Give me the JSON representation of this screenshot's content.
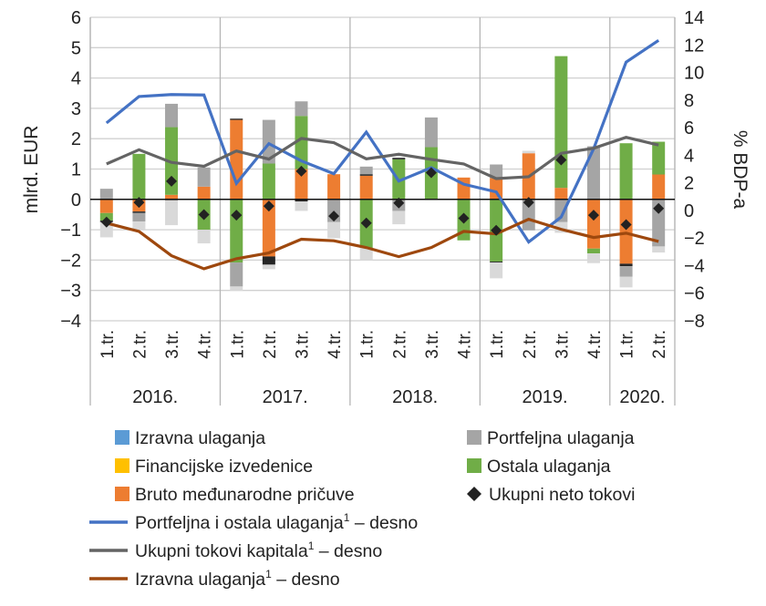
{
  "chart_data": {
    "type": "bar",
    "stacked": true,
    "ylabel": "mlrd. EUR",
    "y2label": "% BDP-a",
    "ylim": [
      -4,
      6
    ],
    "y2lim": [
      -8,
      14
    ],
    "yticks": [
      6,
      5,
      4,
      3,
      2,
      1,
      0,
      -1,
      -2,
      -3,
      -4
    ],
    "y2ticks": [
      14,
      12,
      10,
      8,
      6,
      4,
      2,
      0,
      -2,
      -4,
      -6,
      -8
    ],
    "grid": true,
    "legend_position": "bottom",
    "categories": [
      "1.tr.",
      "2.tr.",
      "3.tr.",
      "4.tr.",
      "1.tr.",
      "2.tr.",
      "3.tr.",
      "4.tr.",
      "1.tr.",
      "2.tr.",
      "3.tr.",
      "4.tr.",
      "1.tr.",
      "2.tr.",
      "3.tr.",
      "4.tr.",
      "1.tr.",
      "2.tr."
    ],
    "years": [
      {
        "label": "2016.",
        "count": 4
      },
      {
        "label": "2017.",
        "count": 4
      },
      {
        "label": "2018.",
        "count": 4
      },
      {
        "label": "2019.",
        "count": 4
      },
      {
        "label": "2020.",
        "count": 2
      }
    ],
    "bar_series": [
      {
        "key": "pricuve",
        "name": "Bruto međunarodne pričuve",
        "color": "#ed7d31",
        "bar_color": "#ed7d31",
        "values": [
          -0.45,
          -0.4,
          0.15,
          0.42,
          2.62,
          -1.88,
          1.0,
          0.83,
          0.78,
          0,
          0,
          0.72,
          0.7,
          1.52,
          0.38,
          -1.62,
          -2.12,
          0.82
        ]
      },
      {
        "key": "ostala",
        "name": "Ostala ulaganja",
        "color": "#70ad47",
        "bar_color": "#70ad47",
        "values": [
          -0.25,
          1.5,
          2.23,
          -1.0,
          -2.08,
          1.18,
          1.75,
          0,
          -1.6,
          1.32,
          1.72,
          -1.35,
          -2.05,
          0,
          4.34,
          -0.16,
          1.85,
          1.08
        ]
      },
      {
        "key": "izvedenice",
        "name": "Financijske izvedenice",
        "color": "#ffc000",
        "bar_color": "#262626",
        "values": [
          -0.05,
          -0.05,
          -0.03,
          0,
          0.04,
          -0.27,
          -0.07,
          0,
          0.05,
          0.05,
          0,
          0,
          -0.03,
          0,
          0,
          0,
          -0.08,
          0
        ]
      },
      {
        "key": "portfeljna",
        "name": "Portfeljna ulaganja",
        "color": "#a5a5a5",
        "bar_color": "#a5a5a5",
        "values": [
          0.35,
          -0.28,
          0.77,
          0.63,
          -0.79,
          1.44,
          0.48,
          -0.75,
          0.25,
          -0.38,
          0.98,
          0,
          0.45,
          -1.02,
          -0.75,
          1.75,
          -0.35,
          -1.55
        ]
      },
      {
        "key": "izravna",
        "name": "Izravna ulaganja",
        "color": "#5b9bd5",
        "bar_color": "#d9d9d9",
        "values": [
          -0.5,
          -0.27,
          -0.82,
          -0.45,
          -0.13,
          -0.15,
          -0.31,
          -0.53,
          -0.4,
          -0.44,
          0,
          0,
          -0.52,
          0.08,
          -0.35,
          -0.32,
          -0.35,
          -0.2
        ]
      }
    ],
    "marker_series": {
      "name": "Ukupni neto tokovi",
      "color": "#222222",
      "values": [
        -0.75,
        -0.1,
        0.6,
        -0.5,
        -0.52,
        -0.22,
        0.93,
        -0.55,
        -0.78,
        -0.12,
        0.88,
        -0.62,
        -1.02,
        -0.1,
        1.3,
        -0.52,
        -0.83,
        -0.3
      ]
    },
    "line_series": [
      {
        "name": "Portfeljna i ostala ulaganja",
        "sup": "1",
        "suffix": " – desno",
        "axis": "right",
        "color": "#4472c4",
        "values": [
          6.34,
          8.26,
          8.4,
          8.37,
          1.96,
          4.84,
          3.59,
          2.66,
          5.68,
          2.13,
          3.1,
          1.9,
          1.34,
          -2.29,
          -0.48,
          4.47,
          10.75,
          12.33
        ]
      },
      {
        "name": "Ukupni tokovi kapitala",
        "sup": "1",
        "suffix": " – desno",
        "axis": "right",
        "color": "#646464",
        "values": [
          3.37,
          4.4,
          3.48,
          3.2,
          4.31,
          3.72,
          5.22,
          4.91,
          3.74,
          4.07,
          3.7,
          3.37,
          2.31,
          2.44,
          4.14,
          4.51,
          5.3,
          4.74
        ]
      },
      {
        "name": "Izravna ulaganja",
        "sup": "1",
        "suffix": " – desno",
        "axis": "right",
        "color": "#9e480e",
        "values": [
          -0.92,
          -1.52,
          -3.28,
          -4.23,
          -3.5,
          -3.08,
          -2.09,
          -2.2,
          -2.69,
          -3.35,
          -2.69,
          -1.52,
          -1.7,
          -0.64,
          -1.37,
          -1.96,
          -1.65,
          -2.25
        ]
      }
    ],
    "legend_bars_order_left": [
      "izravna",
      "izvedenice",
      "pricuve"
    ],
    "legend_bars_order_right": [
      "portfeljna",
      "ostala",
      "marker"
    ]
  }
}
